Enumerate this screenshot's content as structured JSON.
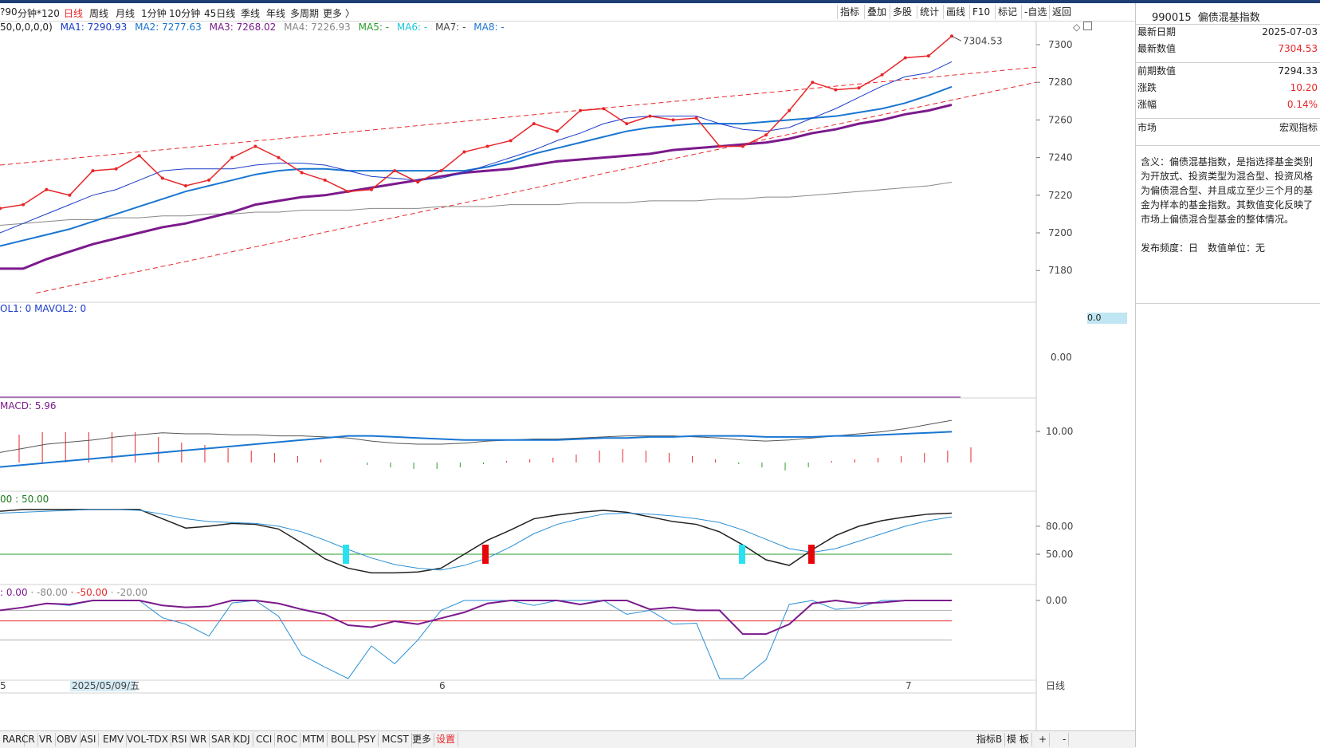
{
  "toolbar": {
    "left_items": [
      {
        "label": "?90",
        "active": false
      },
      {
        "label": "分钟*120",
        "active": false
      },
      {
        "label": "日线",
        "active": true
      },
      {
        "label": "周线",
        "active": false
      },
      {
        "label": "月线",
        "active": false
      },
      {
        "label": "1分钟",
        "active": false
      },
      {
        "label": "10分钟",
        "active": false
      },
      {
        "label": "45日线",
        "active": false
      },
      {
        "label": "季线",
        "active": false
      },
      {
        "label": "年线",
        "active": false
      },
      {
        "label": "多周期",
        "active": false
      },
      {
        "label": "更多 〉",
        "active": false
      }
    ],
    "right_items": [
      "指标",
      "叠加",
      "多股",
      "统计",
      "画线",
      "F10",
      "标记",
      "-自选",
      "返回"
    ]
  },
  "main_legend": {
    "params": "50,0,0,0,0)",
    "ma1": "MA1: 7290.93",
    "ma2": "MA2: 7277.63",
    "ma3": "MA3: 7268.02",
    "ma4": "MA4: 7226.93",
    "ma5": "MA5: -",
    "ma6": "MA6: -",
    "ma7": "MA7: -",
    "ma8": "MA8: -",
    "last_price_label": "7304.53"
  },
  "vol_legend": "OL1: 0  MAVOL2: 0",
  "vol_tag": "0.0",
  "macd_legend": "MACD: 5.96",
  "kdj_legend": "00 : 50.00",
  "wr_legend": {
    "a": ": 0.00",
    "b": " · -80.00",
    "c": " · -50.00",
    "d": " · -20.00"
  },
  "axis_labels": {
    "main": [
      "7300",
      "7280",
      "7260",
      "7240",
      "7220",
      "7200",
      "7180"
    ],
    "vol": [
      "0.00"
    ],
    "macd": [
      "10.00"
    ],
    "kdj": [
      "80.00",
      "50.00"
    ],
    "wr": [
      "0.00"
    ]
  },
  "date_labels": {
    "left": "5",
    "highlight": "2025/05/09/五",
    "mid": "6",
    "right": "7",
    "period": "日线"
  },
  "colors": {
    "price": "#e8262a",
    "ma1": "#1a3cc8",
    "ma2": "#1976d2",
    "ma3": "#7b1a8c",
    "ma4": "#888888",
    "kdj_k": "#222222",
    "kdj_d": "#2a8fd6",
    "wr1": "#7b1a8c",
    "wr2": "#2a8fd6",
    "ref": "#e8262a",
    "mid": "#2a9d2a"
  },
  "right_panel": {
    "code": "990015",
    "name": "偏债混基指数",
    "rows1": [
      {
        "label": "最新日期",
        "value": "2025-07-03",
        "red": false
      },
      {
        "label": "最新数值",
        "value": "7304.53",
        "red": true
      }
    ],
    "rows2": [
      {
        "label": "前期数值",
        "value": "7294.33",
        "red": false
      },
      {
        "label": "涨跌",
        "value": "10.20",
        "red": true
      },
      {
        "label": "涨幅",
        "value": "0.14%",
        "red": true
      }
    ],
    "rows3": [
      {
        "label": "市场",
        "value": "宏观指标",
        "red": false
      }
    ],
    "description": "含义：偏债混基指数，是指选择基金类别为开放式、投资类型为混合型、投资风格为偏债混合型、并且成立至少三个月的基金为样本的基金指数。其数值变化反映了市场上偏债混合型基金的整体情况。",
    "frequency": "发布频度：日　数值单位：无"
  },
  "bottom_tabs": [
    {
      "label": "RAR",
      "active": false
    },
    {
      "label": "CR",
      "active": false
    },
    {
      "label": "VR",
      "active": false
    },
    {
      "label": "OBV",
      "active": false
    },
    {
      "label": "ASI",
      "active": false
    },
    {
      "label": "EMV",
      "active": false
    },
    {
      "label": "VOL-TDX",
      "active": false
    },
    {
      "label": "RSI",
      "active": false
    },
    {
      "label": "WR",
      "active": false
    },
    {
      "label": "SAR",
      "active": false
    },
    {
      "label": "KDJ",
      "active": false
    },
    {
      "label": "CCI",
      "active": false
    },
    {
      "label": "ROC",
      "active": false
    },
    {
      "label": "MTM",
      "active": false
    },
    {
      "label": "BOLL",
      "active": false
    },
    {
      "label": "PSY",
      "active": false
    },
    {
      "label": "MCST",
      "active": false
    },
    {
      "label": "更多",
      "active": false
    },
    {
      "label": "设置",
      "active": true
    }
  ],
  "bottom_right": [
    "指标B",
    "模 板",
    "+",
    "-"
  ],
  "chart_data": {
    "type": "line",
    "title": "990015 偏债混基指数",
    "price": [
      7213,
      7215,
      7223,
      7220,
      7233,
      7234,
      7241,
      7229,
      7225,
      7228,
      7240,
      7246,
      7240,
      7232,
      7228,
      7222,
      7223,
      7233,
      7227,
      7233,
      7243,
      7246,
      7249,
      7258,
      7254,
      7265,
      7266,
      7258,
      7262,
      7260,
      7261,
      7246,
      7246,
      7252,
      7265,
      7280,
      7276,
      7277,
      7284,
      7293,
      7294,
      7304.53
    ],
    "ma1": [
      7200,
      7205,
      7210,
      7215,
      7220,
      7223,
      7228,
      7233,
      7234,
      7234,
      7234,
      7236,
      7237,
      7237,
      7236,
      7233,
      7230,
      7229,
      7228,
      7229,
      7232,
      7236,
      7240,
      7244,
      7249,
      7253,
      7258,
      7261,
      7262,
      7262,
      7262,
      7258,
      7255,
      7254,
      7256,
      7261,
      7266,
      7272,
      7278,
      7283,
      7285,
      7290.93
    ],
    "ma2": [
      7193,
      7196,
      7199,
      7202,
      7206,
      7210,
      7214,
      7218,
      7222,
      7225,
      7228,
      7231,
      7233,
      7234,
      7234,
      7233,
      7233,
      7233,
      7233,
      7233,
      7233,
      7235,
      7238,
      7242,
      7245,
      7248,
      7251,
      7254,
      7256,
      7257,
      7258,
      7258,
      7258,
      7259,
      7260,
      7261,
      7262,
      7264,
      7266,
      7269,
      7273,
      7277.63
    ],
    "ma3": [
      7181,
      7181,
      7186,
      7190,
      7194,
      7197,
      7200,
      7203,
      7205,
      7208,
      7211,
      7215,
      7217,
      7219,
      7220,
      7222,
      7224,
      7226,
      7228,
      7230,
      7232,
      7233,
      7234,
      7236,
      7238,
      7239,
      7240,
      7241,
      7242,
      7244,
      7245,
      7246,
      7247,
      7248,
      7250,
      7253,
      7255,
      7258,
      7260,
      7263,
      7265,
      7268.02
    ],
    "ma4": [
      7204,
      7205,
      7206,
      7207,
      7207,
      7208,
      7208,
      7209,
      7209,
      7210,
      7210,
      7211,
      7211,
      7212,
      7212,
      7212,
      7213,
      7213,
      7213,
      7214,
      7214,
      7214,
      7215,
      7215,
      7215,
      7216,
      7216,
      7216,
      7217,
      7217,
      7217,
      7218,
      7218,
      7219,
      7219,
      7220,
      7221,
      7222,
      7223,
      7224,
      7225,
      7226.93
    ],
    "upper_channel": [
      [
        0,
        7236
      ],
      [
        1300,
        7288
      ]
    ],
    "lower_channel": [
      [
        45,
        7168
      ],
      [
        1300,
        7280
      ]
    ],
    "x_labels": [
      "2025/05/09/五",
      "6",
      "7"
    ]
  }
}
